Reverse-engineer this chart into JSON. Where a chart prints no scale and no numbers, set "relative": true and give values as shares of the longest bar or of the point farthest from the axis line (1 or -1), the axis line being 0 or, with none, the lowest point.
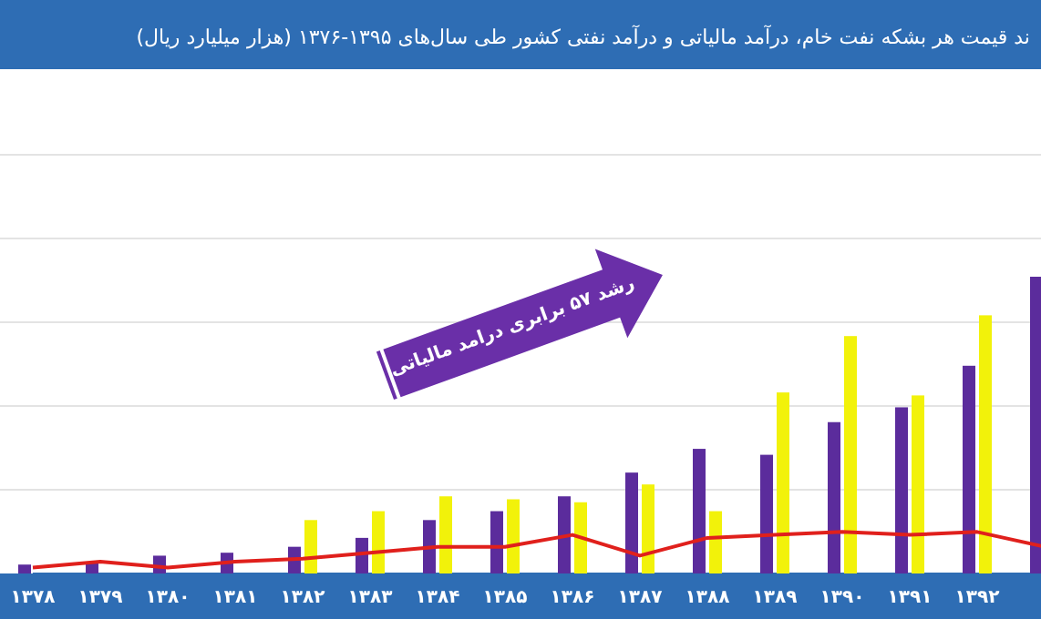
{
  "chart_data": {
    "type": "bar",
    "title": "ند قیمت هر بشکه نفت خام، درآمد مالیاتی و درآمد نفتی کشور طی سال‌های ۱۳۹۵-۱۳۷۶ (هزار میلیارد ریال)",
    "relative": true,
    "grid": "y",
    "categories": [
      "۱۳۷۸",
      "۱۳۷۹",
      "۱۳۸۰",
      "۱۳۸۱",
      "۱۳۸۲",
      "۱۳۸۳",
      "۱۳۸۴",
      "۱۳۸۵",
      "۱۳۸۶",
      "۱۳۸۷",
      "۱۳۸۸",
      "۱۳۸۹",
      "۱۳۹۰",
      "۱۳۹۱",
      "۱۳۹۲",
      null
    ],
    "series": [
      {
        "color": "#5b2c9c",
        "values": [
          0.03,
          0.04,
          0.06,
          0.07,
          0.09,
          0.12,
          0.18,
          0.21,
          0.26,
          0.34,
          0.42,
          0.4,
          0.51,
          0.56,
          0.7,
          1
        ]
      },
      {
        "color": "#f2f20a",
        "values": [
          null,
          null,
          null,
          null,
          0.18,
          0.21,
          0.26,
          0.25,
          0.24,
          0.3,
          0.21,
          0.61,
          0.8,
          0.6,
          0.87,
          null
        ]
      },
      {
        "type": "line",
        "color": "#e0201c",
        "values": [
          0.02,
          0.04,
          0.02,
          0.04,
          0.05,
          0.07,
          0.09,
          0.09,
          0.13,
          0.06,
          0.12,
          0.13,
          0.14,
          0.13,
          0.14,
          0.09
        ]
      }
    ],
    "annotations": [
      "رشد ۵۷ برابری درامد مالیاتی"
    ]
  }
}
